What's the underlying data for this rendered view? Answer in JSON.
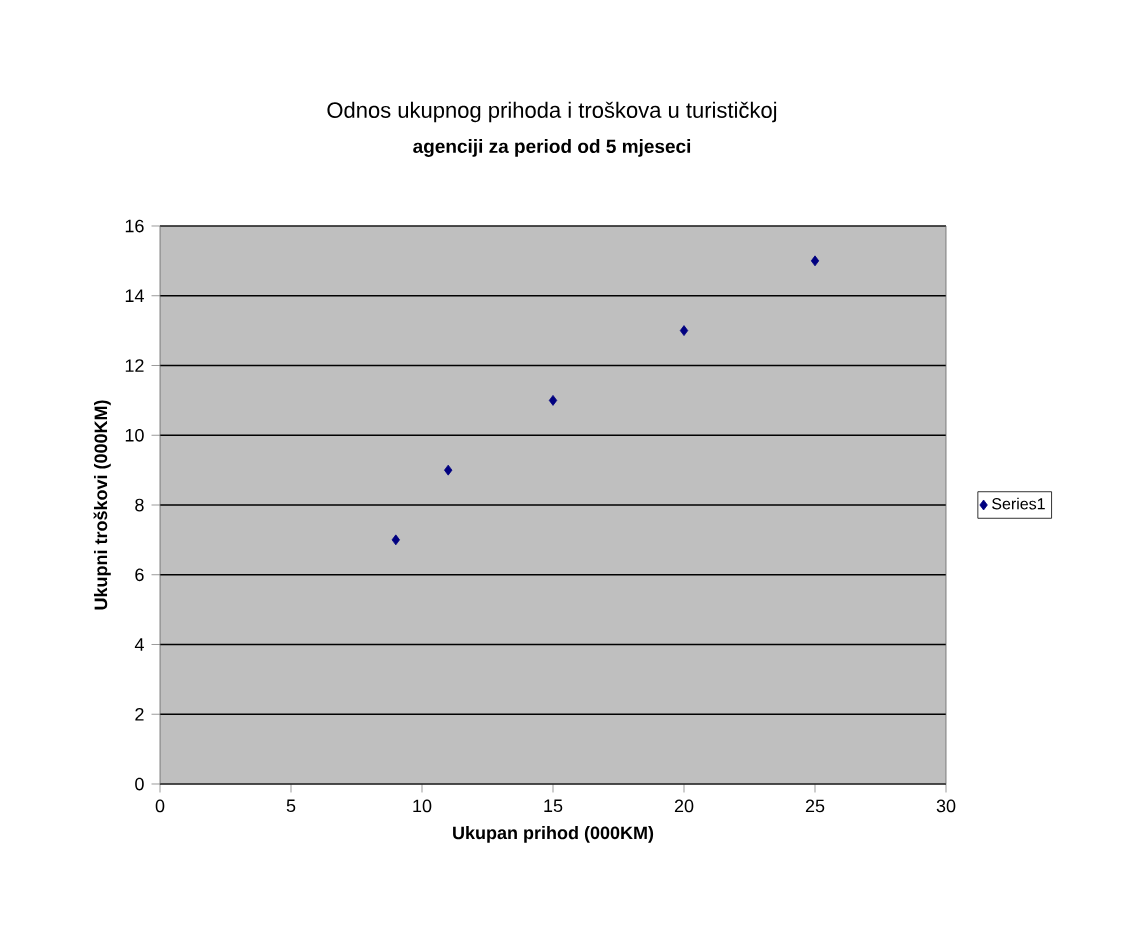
{
  "chart_data": {
    "type": "scatter",
    "title": "Odnos ukupnog prihoda i troškova u turističkoj",
    "subtitle": "agenciji za period od 5 mjeseci",
    "xlabel": "Ukupan prihod (000KM)",
    "ylabel": "Ukupni troškovi (000KM)",
    "series": [
      {
        "name": "Series1",
        "color": "#000080",
        "x": [
          9,
          11,
          15,
          20,
          25
        ],
        "values": [
          7,
          9,
          11,
          13,
          15
        ]
      }
    ],
    "xlim": [
      0,
      30
    ],
    "xticks": [
      0,
      5,
      10,
      15,
      20,
      25,
      30
    ],
    "ylim": [
      0,
      16
    ],
    "yticks": [
      0,
      2,
      4,
      6,
      8,
      10,
      12,
      14,
      16
    ],
    "grid": "y",
    "legend": "right",
    "marker": "diamond"
  }
}
